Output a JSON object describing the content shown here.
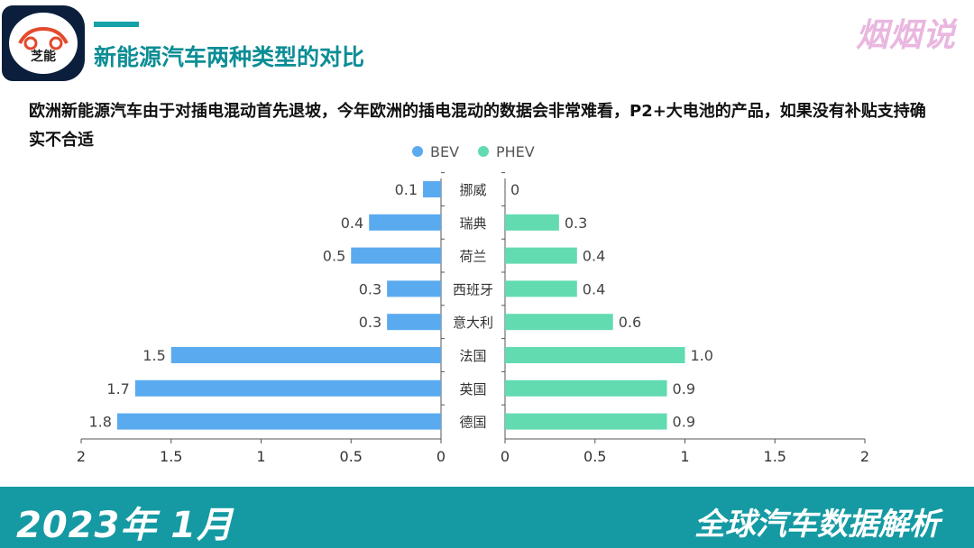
{
  "header": {
    "logo_text": "芝能",
    "title": "新能源汽车两种类型的对比",
    "brand": "烟烟说"
  },
  "subtitle": "欧洲新能源汽车由于对插电混动首先退坡，今年欧洲的插电混动的数据会非常难看，P2+大电池的产品，如果没有补贴支持确实不合适",
  "footer": {
    "left": "2023年 1月",
    "right": "全球汽车数据解析"
  },
  "chart_data": {
    "type": "bar",
    "orientation": "horizontal-butterfly",
    "categories": [
      "挪威",
      "瑞典",
      "荷兰",
      "西班牙",
      "意大利",
      "法国",
      "英国",
      "德国"
    ],
    "series": [
      {
        "name": "BEV",
        "values": [
          0.1,
          0.4,
          0.5,
          0.3,
          0.3,
          1.5,
          1.7,
          1.8
        ],
        "color": "#5aaaf0",
        "side": "left"
      },
      {
        "name": "PHEV",
        "values": [
          0,
          0.3,
          0.4,
          0.4,
          0.6,
          1.0,
          0.9,
          0.9
        ],
        "color": "#63dbb0",
        "side": "right"
      }
    ],
    "xlim": [
      0,
      2
    ],
    "xticks": [
      "0",
      "0.5",
      "1",
      "1.5",
      "2"
    ],
    "legend": "top-center",
    "grid": false
  }
}
